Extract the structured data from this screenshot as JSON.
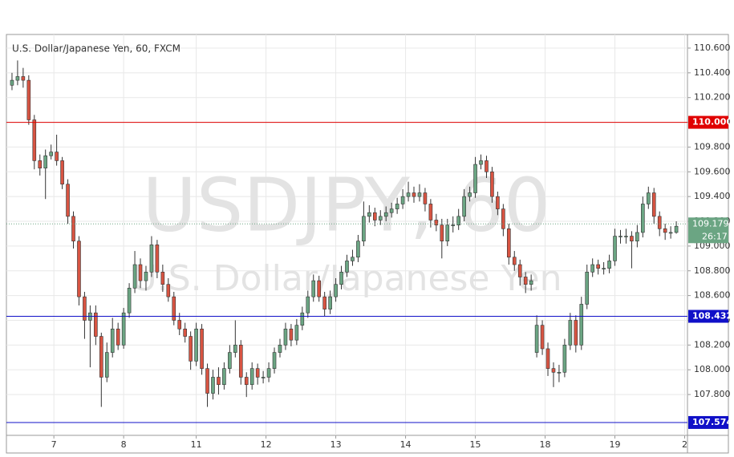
{
  "chart_data": {
    "type": "candlestick",
    "title": "U.S. Dollar/Japanese Yen, 60, FXCM",
    "watermark": "USDJPY, 60",
    "watermark_subtitle": "U.S. Dollar/Japanese Yen",
    "x": [
      0,
      2,
      4,
      6,
      8,
      10,
      12,
      14,
      16,
      18,
      20,
      22,
      24,
      26,
      28,
      30,
      32,
      34,
      36,
      38,
      40,
      42,
      44,
      46,
      48,
      50,
      52,
      54,
      56,
      58,
      60,
      62,
      64,
      66,
      68,
      70,
      72,
      74,
      76,
      78,
      80,
      82,
      84,
      86,
      88,
      90,
      92,
      94,
      96,
      98,
      100,
      102,
      104,
      106,
      108,
      110,
      112,
      114,
      116,
      118,
      120,
      122,
      124,
      126,
      128,
      130,
      132,
      134,
      136,
      138,
      140,
      142,
      144,
      146,
      148,
      150,
      152,
      154,
      156,
      158,
      160,
      162,
      164,
      166,
      168,
      170,
      172,
      174,
      176,
      178,
      180,
      182,
      184,
      186,
      188,
      190,
      192,
      194,
      196,
      198,
      200,
      202,
      204,
      206,
      208,
      210,
      212,
      214,
      216,
      218,
      220,
      222,
      224,
      226,
      228,
      230,
      232,
      234,
      236,
      238
    ],
    "open": [
      110.3,
      110.34,
      110.37,
      110.34,
      110.02,
      109.69,
      109.63,
      109.73,
      109.76,
      109.69,
      109.5,
      109.24,
      109.04,
      108.59,
      108.4,
      108.46,
      108.27,
      107.94,
      108.14,
      108.33,
      108.2,
      108.46,
      108.66,
      108.85,
      108.72,
      108.79,
      109.01,
      108.79,
      108.69,
      108.59,
      108.4,
      108.33,
      108.27,
      108.07,
      108.33,
      108.01,
      107.81,
      107.94,
      107.88,
      108.01,
      108.14,
      108.2,
      107.94,
      107.88,
      108.01,
      107.94,
      107.94,
      108.01,
      108.14,
      108.2,
      108.33,
      108.24,
      108.36,
      108.46,
      108.59,
      108.72,
      108.59,
      108.49,
      108.59,
      108.69,
      108.79,
      108.88,
      108.91,
      109.04,
      109.24,
      109.27,
      109.21,
      109.24,
      109.27,
      109.3,
      109.34,
      109.4,
      109.43,
      109.4,
      109.43,
      109.34,
      109.21,
      109.17,
      109.04,
      109.17,
      109.17,
      109.24,
      109.4,
      109.43,
      109.66,
      109.69,
      109.6,
      109.4,
      109.3,
      109.14,
      108.91,
      108.85,
      108.75,
      108.69,
      108.14,
      108.36,
      108.17,
      108.01,
      107.98,
      107.98,
      108.2,
      108.4,
      108.2,
      108.53,
      108.79,
      108.85,
      108.82,
      108.82,
      108.88,
      109.08,
      109.08,
      109.08,
      109.04,
      109.11,
      109.34,
      109.43,
      109.24,
      109.14,
      109.11,
      109.11
    ],
    "high": [
      110.4,
      110.5,
      110.44,
      110.38,
      110.06,
      109.74,
      109.78,
      109.82,
      109.9,
      109.72,
      109.54,
      109.28,
      109.08,
      108.63,
      108.52,
      108.52,
      108.3,
      108.22,
      108.42,
      108.38,
      108.5,
      108.7,
      108.96,
      108.9,
      108.84,
      109.08,
      109.05,
      108.85,
      108.74,
      108.63,
      108.46,
      108.38,
      108.31,
      108.38,
      108.37,
      108.05,
      108.0,
      108.02,
      108.06,
      108.2,
      108.4,
      108.24,
      107.98,
      108.06,
      108.05,
      107.99,
      108.06,
      108.18,
      108.25,
      108.38,
      108.37,
      108.41,
      108.51,
      108.64,
      108.77,
      108.76,
      108.63,
      108.64,
      108.74,
      108.84,
      108.93,
      108.97,
      109.09,
      109.36,
      109.33,
      109.31,
      109.29,
      109.32,
      109.35,
      109.39,
      109.46,
      109.52,
      109.48,
      109.5,
      109.47,
      109.38,
      109.26,
      109.22,
      109.22,
      109.24,
      109.3,
      109.46,
      109.48,
      109.72,
      109.74,
      109.73,
      109.64,
      109.44,
      109.34,
      109.18,
      108.96,
      108.89,
      108.79,
      108.77,
      108.44,
      108.4,
      108.22,
      108.06,
      108.04,
      108.25,
      108.46,
      108.44,
      108.59,
      108.85,
      108.9,
      108.89,
      108.87,
      108.93,
      109.14,
      109.13,
      109.14,
      109.12,
      109.17,
      109.4,
      109.48,
      109.47,
      109.28,
      109.18,
      109.16,
      109.2
    ],
    "low": [
      110.26,
      110.3,
      110.28,
      109.98,
      109.62,
      109.57,
      109.38,
      109.7,
      109.65,
      109.46,
      109.18,
      108.98,
      108.52,
      108.25,
      108.02,
      108.2,
      107.7,
      107.9,
      108.1,
      108.16,
      108.17,
      108.42,
      108.62,
      108.66,
      108.64,
      108.75,
      108.74,
      108.63,
      108.55,
      108.36,
      108.28,
      108.22,
      108.0,
      108.03,
      107.96,
      107.7,
      107.76,
      107.8,
      107.84,
      107.97,
      108.1,
      107.88,
      107.78,
      107.84,
      107.88,
      107.89,
      107.9,
      107.97,
      108.1,
      108.16,
      108.19,
      108.2,
      108.32,
      108.42,
      108.55,
      108.55,
      108.43,
      108.45,
      108.55,
      108.65,
      108.75,
      108.84,
      108.87,
      109.0,
      109.19,
      109.16,
      109.17,
      109.2,
      109.23,
      109.26,
      109.3,
      109.36,
      109.35,
      109.36,
      109.28,
      109.15,
      109.12,
      108.9,
      109.0,
      109.11,
      109.13,
      109.2,
      109.36,
      109.39,
      109.62,
      109.55,
      109.35,
      109.25,
      109.08,
      108.85,
      108.8,
      108.68,
      108.62,
      108.64,
      108.1,
      108.12,
      107.95,
      107.86,
      107.9,
      107.94,
      108.16,
      108.14,
      108.16,
      108.49,
      108.75,
      108.77,
      108.77,
      108.78,
      108.84,
      109.02,
      109.02,
      108.82,
      108.99,
      109.07,
      109.3,
      109.18,
      109.08,
      109.05,
      109.06,
      109.1
    ],
    "close": [
      110.34,
      110.37,
      110.34,
      110.02,
      109.69,
      109.63,
      109.73,
      109.76,
      109.69,
      109.5,
      109.24,
      109.04,
      108.59,
      108.4,
      108.46,
      108.27,
      107.94,
      108.14,
      108.33,
      108.2,
      108.46,
      108.66,
      108.85,
      108.72,
      108.79,
      109.01,
      108.79,
      108.69,
      108.59,
      108.4,
      108.33,
      108.27,
      108.07,
      108.33,
      108.01,
      107.81,
      107.94,
      107.88,
      108.01,
      108.14,
      108.2,
      107.94,
      107.88,
      108.01,
      107.94,
      107.94,
      108.01,
      108.14,
      108.2,
      108.33,
      108.24,
      108.36,
      108.46,
      108.59,
      108.72,
      108.59,
      108.49,
      108.59,
      108.69,
      108.79,
      108.88,
      108.91,
      109.04,
      109.24,
      109.27,
      109.21,
      109.24,
      109.27,
      109.3,
      109.34,
      109.4,
      109.43,
      109.4,
      109.43,
      109.34,
      109.21,
      109.17,
      109.04,
      109.17,
      109.17,
      109.24,
      109.4,
      109.43,
      109.66,
      109.69,
      109.6,
      109.4,
      109.3,
      109.14,
      108.91,
      108.85,
      108.75,
      108.69,
      108.72,
      108.36,
      108.17,
      108.01,
      107.98,
      107.98,
      108.2,
      108.4,
      108.2,
      108.53,
      108.79,
      108.85,
      108.82,
      108.82,
      108.88,
      109.08,
      109.08,
      109.08,
      109.04,
      109.11,
      109.34,
      109.43,
      109.24,
      109.14,
      109.11,
      109.11,
      109.16
    ],
    "up_color": "#6ba583",
    "down_color": "#d75442",
    "outline_color": "#333333",
    "xlim": [
      -2,
      242
    ],
    "xticks": [
      {
        "value": 15,
        "label": "7"
      },
      {
        "value": 40,
        "label": "8"
      },
      {
        "value": 66,
        "label": "11"
      },
      {
        "value": 91,
        "label": "12"
      },
      {
        "value": 116,
        "label": "13"
      },
      {
        "value": 141,
        "label": "14"
      },
      {
        "value": 166,
        "label": "15"
      },
      {
        "value": 191,
        "label": "18"
      },
      {
        "value": 216,
        "label": "19"
      },
      {
        "value": 241,
        "label": "2"
      }
    ],
    "ylim": [
      107.47,
      110.71
    ],
    "yticks": [
      {
        "value": 107.8,
        "label": "107.800"
      },
      {
        "value": 108.0,
        "label": "108.000"
      },
      {
        "value": 108.2,
        "label": "108.200"
      },
      {
        "value": 108.4,
        "label": "108.400"
      },
      {
        "value": 108.6,
        "label": "108.600"
      },
      {
        "value": 108.8,
        "label": "108.800"
      },
      {
        "value": 109.0,
        "label": "109.000"
      },
      {
        "value": 109.2,
        "label": "109.200"
      },
      {
        "value": 109.4,
        "label": "109.400"
      },
      {
        "value": 109.6,
        "label": "109.600"
      },
      {
        "value": 109.8,
        "label": "109.800"
      },
      {
        "value": 110.0,
        "label": "110.000"
      },
      {
        "value": 110.2,
        "label": "110.200"
      },
      {
        "value": 110.4,
        "label": "110.400"
      },
      {
        "value": 110.6,
        "label": "110.600"
      }
    ],
    "grid": true,
    "levels": [
      {
        "value": 110.0,
        "label": "110.000",
        "color": "#e00000"
      },
      {
        "value": 108.432,
        "label": "108.432",
        "color": "#1010c8"
      },
      {
        "value": 107.574,
        "label": "107.574",
        "color": "#1010c8"
      }
    ],
    "last_price": 109.179,
    "last_color": "#6ba583",
    "countdown": "26:17"
  }
}
